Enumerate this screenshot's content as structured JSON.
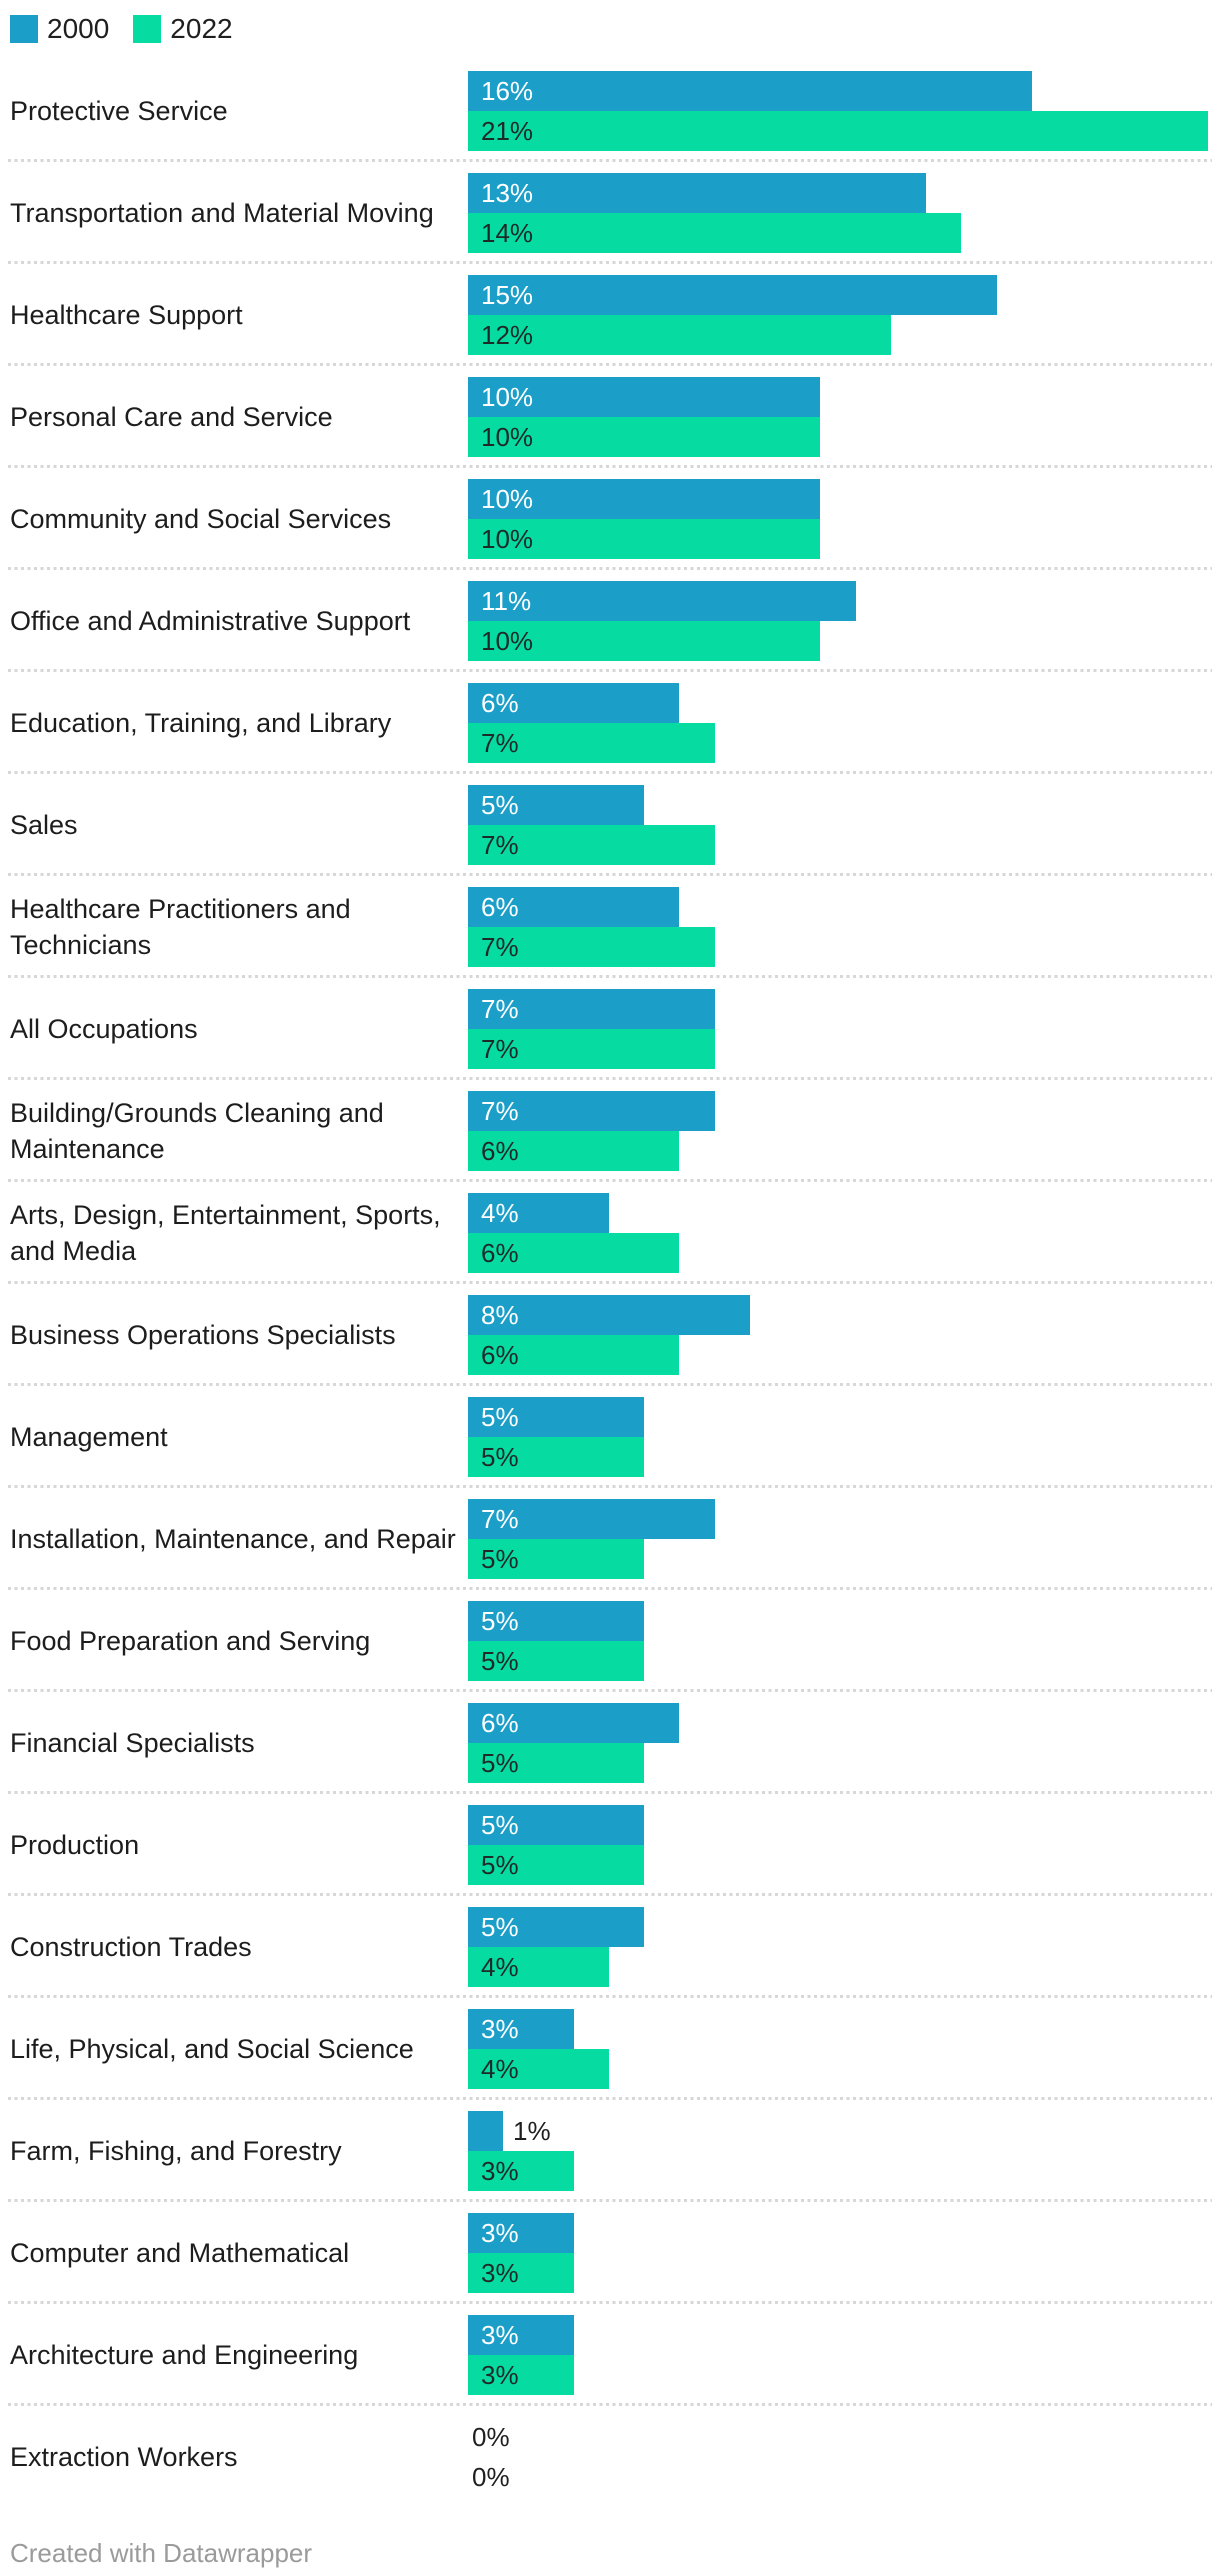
{
  "legend": {
    "items": [
      {
        "label": "2000",
        "color": "#1b9fc9"
      },
      {
        "label": "2022",
        "color": "#06dba1"
      }
    ]
  },
  "footer": {
    "credit": "Created with Datawrapper"
  },
  "colors": {
    "series_2000": "#1b9fc9",
    "series_2022": "#06dba1",
    "label_dark": "#1d1d1d",
    "value_on_blue": "#ffffff",
    "value_on_green": "#1e2a28",
    "separator": "#d7d7d7",
    "credit_gray": "#9b9b9b"
  },
  "chart_data": {
    "type": "bar",
    "orientation": "horizontal",
    "unit": "%",
    "xlim": [
      0,
      21
    ],
    "grid": false,
    "legend_position": "top-left",
    "categories": [
      "Protective Service",
      "Transportation and Material Moving",
      "Healthcare Support",
      "Personal Care and Service",
      "Community and Social Services",
      "Office and Administrative Support",
      "Education, Training, and Library",
      "Sales",
      "Healthcare Practitioners and Technicians",
      "All Occupations",
      "Building/Grounds Cleaning and Maintenance",
      "Arts, Design, Entertainment, Sports, and Media",
      "Business Operations Specialists",
      "Management",
      "Installation, Maintenance, and Repair",
      "Food Preparation and Serving",
      "Financial Specialists",
      "Production",
      "Construction Trades",
      "Life, Physical, and Social Science",
      "Farm, Fishing, and Forestry",
      "Computer and Mathematical",
      "Architecture and Engineering",
      "Extraction Workers"
    ],
    "series": [
      {
        "name": "2000",
        "color": "#1b9fc9",
        "values": [
          16,
          13,
          15,
          10,
          10,
          11,
          6,
          5,
          6,
          7,
          7,
          4,
          8,
          5,
          7,
          5,
          6,
          5,
          5,
          3,
          1,
          3,
          3,
          0
        ]
      },
      {
        "name": "2022",
        "color": "#06dba1",
        "values": [
          21,
          14,
          12,
          10,
          10,
          10,
          7,
          7,
          7,
          7,
          6,
          6,
          6,
          5,
          5,
          5,
          5,
          5,
          4,
          4,
          3,
          3,
          3,
          0
        ]
      }
    ]
  }
}
